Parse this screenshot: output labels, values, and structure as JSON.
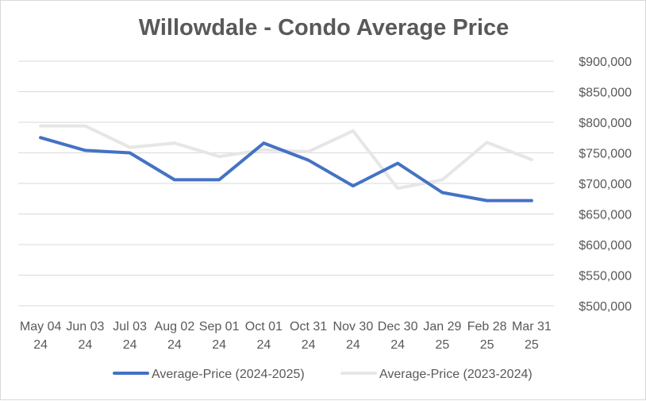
{
  "chart_data": {
    "type": "line",
    "title": "Willowdale - Condo Average Price",
    "categories": [
      [
        "May 04",
        "24"
      ],
      [
        "Jun 03",
        "24"
      ],
      [
        "Jul 03",
        "24"
      ],
      [
        "Aug 02",
        "24"
      ],
      [
        "Sep 01",
        "24"
      ],
      [
        "Oct 01",
        "24"
      ],
      [
        "Oct 31",
        "24"
      ],
      [
        "Nov 30",
        "24"
      ],
      [
        "Dec 30",
        "24"
      ],
      [
        "Jan 29",
        "25"
      ],
      [
        "Feb 28",
        "25"
      ],
      [
        "Mar 31",
        "25"
      ]
    ],
    "series": [
      {
        "name": "Average-Price (2024-2025)",
        "color": "#4472c4",
        "values": [
          775000,
          754000,
          750000,
          706000,
          706000,
          766000,
          738000,
          696000,
          733000,
          685000,
          672000,
          672000
        ]
      },
      {
        "name": "Average-Price (2023-2024)",
        "color": "#e7e6e6",
        "values": [
          794000,
          794000,
          759000,
          766000,
          744000,
          755000,
          752000,
          786000,
          692000,
          706000,
          767000,
          739000
        ]
      }
    ],
    "y_ticks": [
      "$500,000",
      "$550,000",
      "$600,000",
      "$650,000",
      "$700,000",
      "$750,000",
      "$800,000",
      "$850,000",
      "$900,000"
    ],
    "y_tick_values": [
      500000,
      550000,
      600000,
      650000,
      700000,
      750000,
      800000,
      850000,
      900000
    ],
    "ylim": [
      500000,
      900000
    ],
    "xlabel": "",
    "ylabel": "",
    "grid": true,
    "legend_position": "bottom"
  }
}
